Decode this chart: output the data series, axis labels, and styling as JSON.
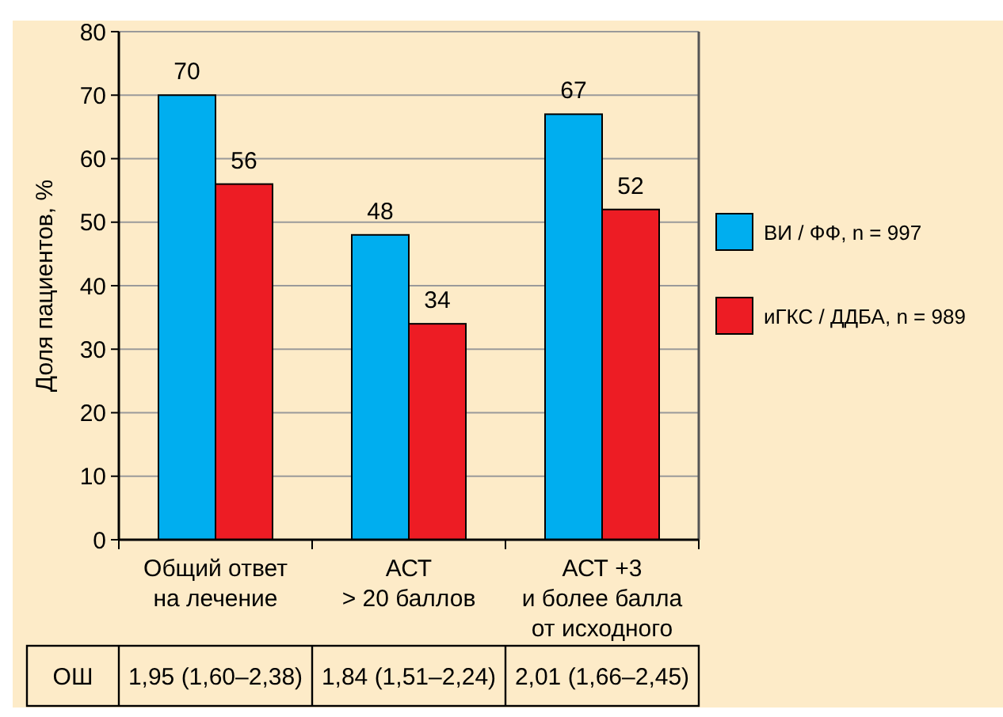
{
  "chart_data": {
    "type": "bar",
    "ylabel": "Доля  пациентов, %",
    "categories": [
      "Общий ответ\nна лечение",
      "АСТ\n> 20 баллов",
      "АСТ +3\nи более балла\nот исходного"
    ],
    "series": [
      {
        "name": "ВИ / ФФ, n = 997",
        "color": "#00aeef",
        "values": [
          70,
          48,
          67
        ]
      },
      {
        "name": "иГКС / ДДБА, n = 989",
        "color": "#ed1c24",
        "values": [
          56,
          34,
          52
        ]
      }
    ],
    "ylim": [
      0,
      80
    ],
    "yticks": [
      0,
      10,
      20,
      30,
      40,
      50,
      60,
      70,
      80
    ],
    "grid": "y",
    "legend": "right",
    "data_labels": true,
    "annotations": [
      "ОШ",
      "1,95 (1,60–2,38)",
      "1,84 (1,51–2,24)",
      "2,01 (1,66–2,45)"
    ]
  }
}
